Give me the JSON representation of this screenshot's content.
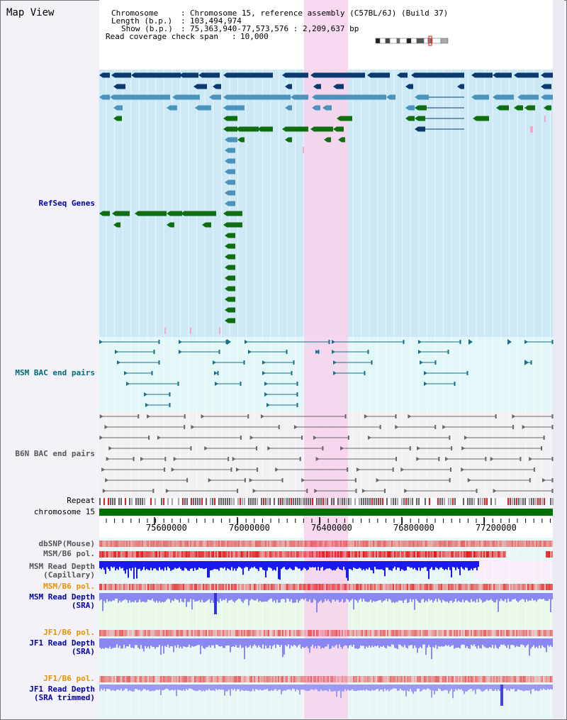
{
  "title": "Map View",
  "header": {
    "chromosome_label": "Chromosome",
    "chromosome_value": "Chromosome 15, reference assembly (C57BL/6J) (Build 37)",
    "length_label": "Length (b.p.)",
    "length_value": "103,494,974",
    "show_label": "Show (b.p.)",
    "show_value": "75,363,940-77,573,576 : 2,209,637 bp",
    "span_label": "Read coverage check span",
    "span_value": "10,000"
  },
  "tracks": {
    "refseq": "RefSeq Genes",
    "msm_bac": "MSM BAC end pairs",
    "b6n_bac": "B6N BAC end pairs",
    "repeat": "Repeat",
    "chromosome": "chromosome 15",
    "dbsnp": "dbSNP(Mouse)",
    "msm_b6_pol": "MSM/B6 pol.",
    "msm_depth_cap": "MSM Read Depth\n(Capillary)",
    "msm_b6_pol2": "MSM/B6 pol.",
    "msm_depth_sra": "MSM Read Depth\n(SRA)",
    "jf1_b6_pol": "JF1/B6 pol.",
    "jf1_depth_sra": "JF1 Read Depth\n(SRA)",
    "jf1_b6_pol2": "JF1/B6 pol.",
    "jf1_depth_trim": "JF1 Read Depth\n(SRA trimmed)"
  },
  "axis": {
    "ticks": [
      "75600000",
      "76000000",
      "76400000",
      "76800000",
      "77200000"
    ]
  },
  "colors": {
    "refseq_bg": "#cde9f5",
    "msm_bg": "#e2f7f7",
    "b6n_bg": "#f1f1f4",
    "highlight": "#f7d2ec",
    "gene_dark": "#0c3a6e",
    "gene_mid": "#4b93bd",
    "gene_green": "#0f6e10",
    "chrom": "#007000",
    "depth": "#1a1aee",
    "depth_light": "#8888f0",
    "label_blue": "#0000aa",
    "label_teal": "#006d7a",
    "label_orange": "#e79300",
    "label_gray": "#555555"
  }
}
